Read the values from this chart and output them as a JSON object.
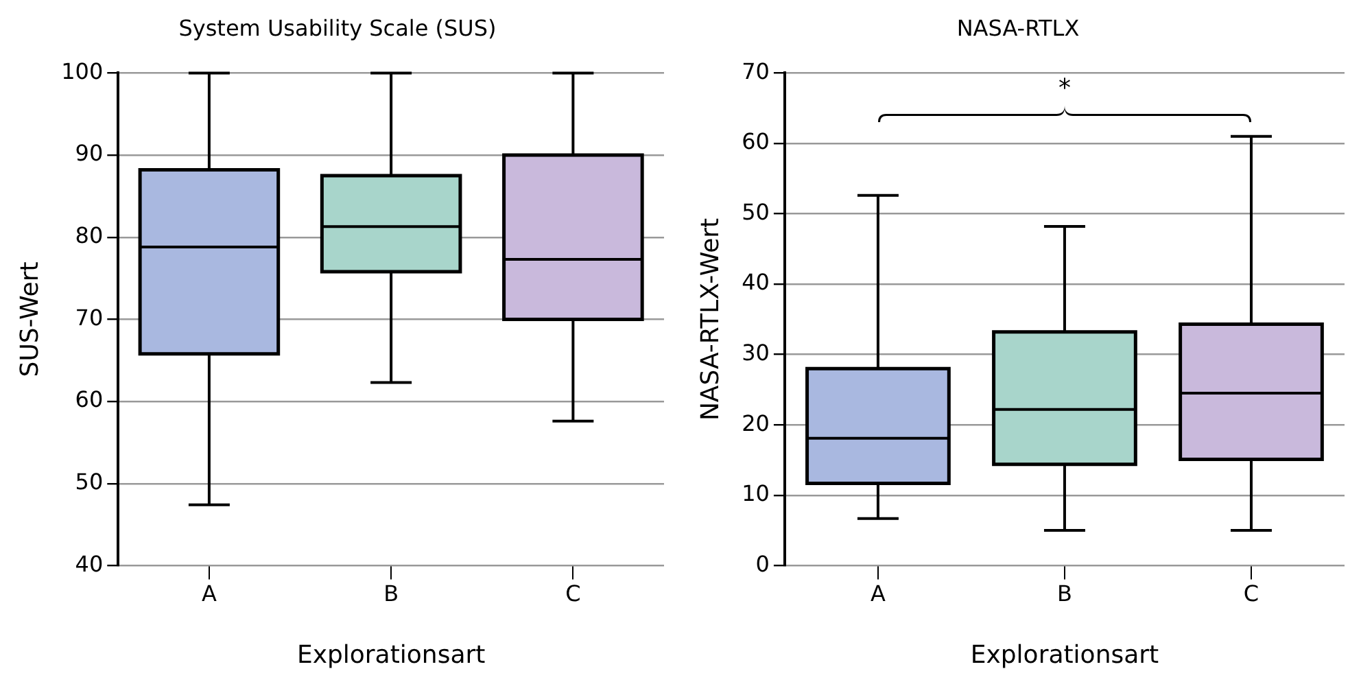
{
  "chart_data": [
    {
      "type": "box",
      "title": "System Usability Scale (SUS)",
      "xlabel": "Explorationsart",
      "ylabel": "SUS-Wert",
      "categories": [
        "A",
        "B",
        "C"
      ],
      "colors": [
        "#a9b8e0",
        "#a8d5cb",
        "#c9b9dc"
      ],
      "boxes": [
        {
          "low": 47.4,
          "q1": 65.8,
          "median": 78.8,
          "q3": 88.2,
          "high": 100
        },
        {
          "low": 62.3,
          "q1": 75.8,
          "median": 81.3,
          "q3": 87.5,
          "high": 100
        },
        {
          "low": 57.6,
          "q1": 70,
          "median": 77.3,
          "q3": 90,
          "high": 100
        }
      ],
      "ylim": [
        40,
        100
      ],
      "yticks": [
        40,
        50,
        60,
        70,
        80,
        90,
        100
      ],
      "grid": "y",
      "legend": false
    },
    {
      "type": "box",
      "title": "NASA-RTLX",
      "xlabel": "Explorationsart",
      "ylabel": "NASA-RTLX-Wert",
      "categories": [
        "A",
        "B",
        "C"
      ],
      "colors": [
        "#a9b8e0",
        "#a8d5cb",
        "#c9b9dc"
      ],
      "boxes": [
        {
          "low": 6.7,
          "q1": 11.7,
          "median": 18.1,
          "q3": 28,
          "high": 52.6
        },
        {
          "low": 5,
          "q1": 14.4,
          "median": 22.2,
          "q3": 33.2,
          "high": 48.2
        },
        {
          "low": 5,
          "q1": 15.1,
          "median": 24.5,
          "q3": 34.3,
          "high": 61
        }
      ],
      "ylim": [
        0,
        70
      ],
      "yticks": [
        0,
        10,
        20,
        30,
        40,
        50,
        60,
        70
      ],
      "grid": "y",
      "legend": false,
      "annotations": [
        "*"
      ]
    }
  ]
}
